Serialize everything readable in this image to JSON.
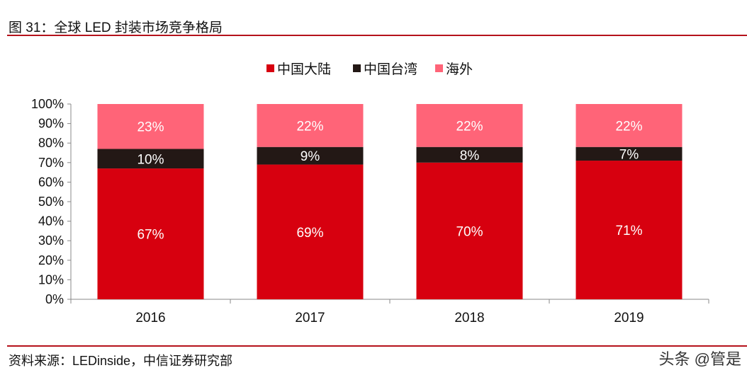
{
  "title": "图 31：全球 LED 封装市场竞争格局",
  "source": "资料来源：LEDinside，中信证券研究部",
  "watermark": "头条 @管是",
  "chart_data": {
    "type": "bar",
    "stacked": true,
    "categories": [
      "2016",
      "2017",
      "2018",
      "2019"
    ],
    "series": [
      {
        "name": "中国大陆",
        "values": [
          67,
          69,
          70,
          71
        ],
        "color": "#d7000f",
        "label_color": "#ffffff"
      },
      {
        "name": "中国台湾",
        "values": [
          10,
          9,
          8,
          7
        ],
        "color": "#231815",
        "label_color": "#ffffff"
      },
      {
        "name": "海外",
        "values": [
          23,
          22,
          22,
          22
        ],
        "color": "#ff6478",
        "label_color": "#ffffff"
      }
    ],
    "yticks": [
      "0%",
      "10%",
      "20%",
      "30%",
      "40%",
      "50%",
      "60%",
      "70%",
      "80%",
      "90%",
      "100%"
    ],
    "ylim": [
      0,
      100
    ],
    "legend": "top-center",
    "grid": false
  }
}
